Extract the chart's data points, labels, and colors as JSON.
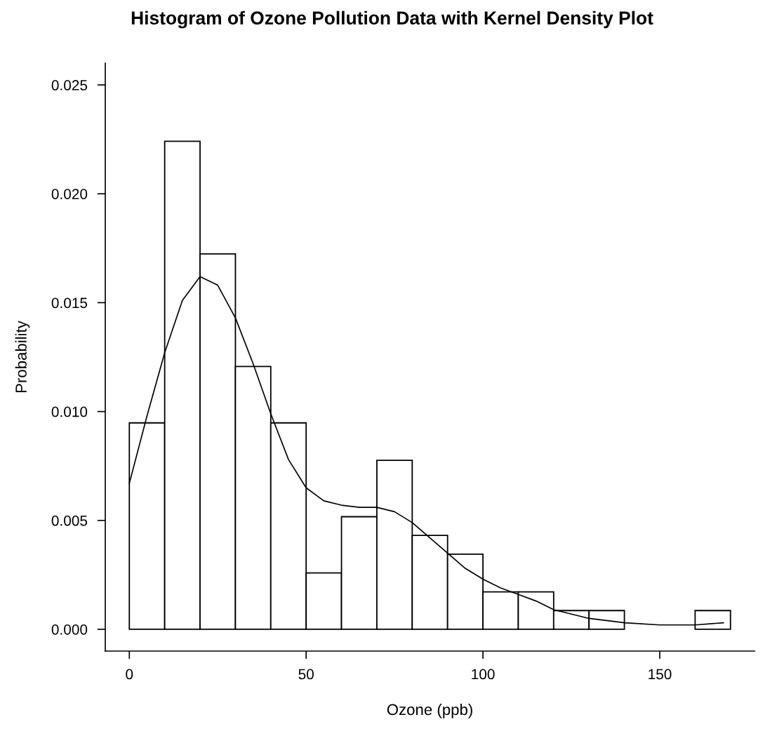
{
  "chart_data": {
    "type": "histogram",
    "title": "Histogram of Ozone Pollution Data with Kernel Density Plot",
    "xlabel": "Ozone (ppb)",
    "ylabel": "Probability",
    "bins": [
      0,
      10,
      20,
      30,
      40,
      50,
      60,
      70,
      80,
      90,
      100,
      110,
      120,
      130,
      140,
      150,
      160,
      170
    ],
    "values": [
      0.00948,
      0.02241,
      0.01724,
      0.01207,
      0.00948,
      0.00259,
      0.00517,
      0.00776,
      0.00431,
      0.00345,
      0.00172,
      0.00172,
      0.00086,
      0.00086,
      0,
      0,
      0.00086
    ],
    "color": "#ffffff",
    "series": [
      {
        "type": "line",
        "color": "#000000",
        "x": [
          0,
          5,
          10,
          15,
          20,
          25,
          30,
          35,
          40,
          45,
          50,
          55,
          60,
          65,
          70,
          75,
          80,
          85,
          90,
          95,
          100,
          105,
          110,
          115,
          120,
          125,
          130,
          140,
          150,
          160,
          168
        ],
        "values": [
          0.0067,
          0.0098,
          0.0127,
          0.0151,
          0.0162,
          0.0158,
          0.0143,
          0.0122,
          0.0099,
          0.0078,
          0.0065,
          0.0059,
          0.0057,
          0.0056,
          0.0056,
          0.0054,
          0.0049,
          0.0042,
          0.0035,
          0.0028,
          0.0023,
          0.0019,
          0.0016,
          0.0013,
          0.0009,
          0.0007,
          0.0005,
          0.0003,
          0.0002,
          0.0002,
          0.0003
        ]
      }
    ],
    "xticks": [
      0,
      50,
      100,
      150
    ],
    "yticks": [
      {
        "value": 0,
        "label": "0.000"
      },
      {
        "value": 0.005,
        "label": "0.005"
      },
      {
        "value": 0.01,
        "label": "0.010"
      },
      {
        "value": 0.015,
        "label": "0.015"
      },
      {
        "value": 0.02,
        "label": "0.020"
      },
      {
        "value": 0.025,
        "label": "0.025"
      }
    ],
    "xlim": [
      -6.8,
      176.8
    ],
    "ylim": [
      -0.001,
      0.026
    ],
    "grid": false,
    "legend": false
  }
}
